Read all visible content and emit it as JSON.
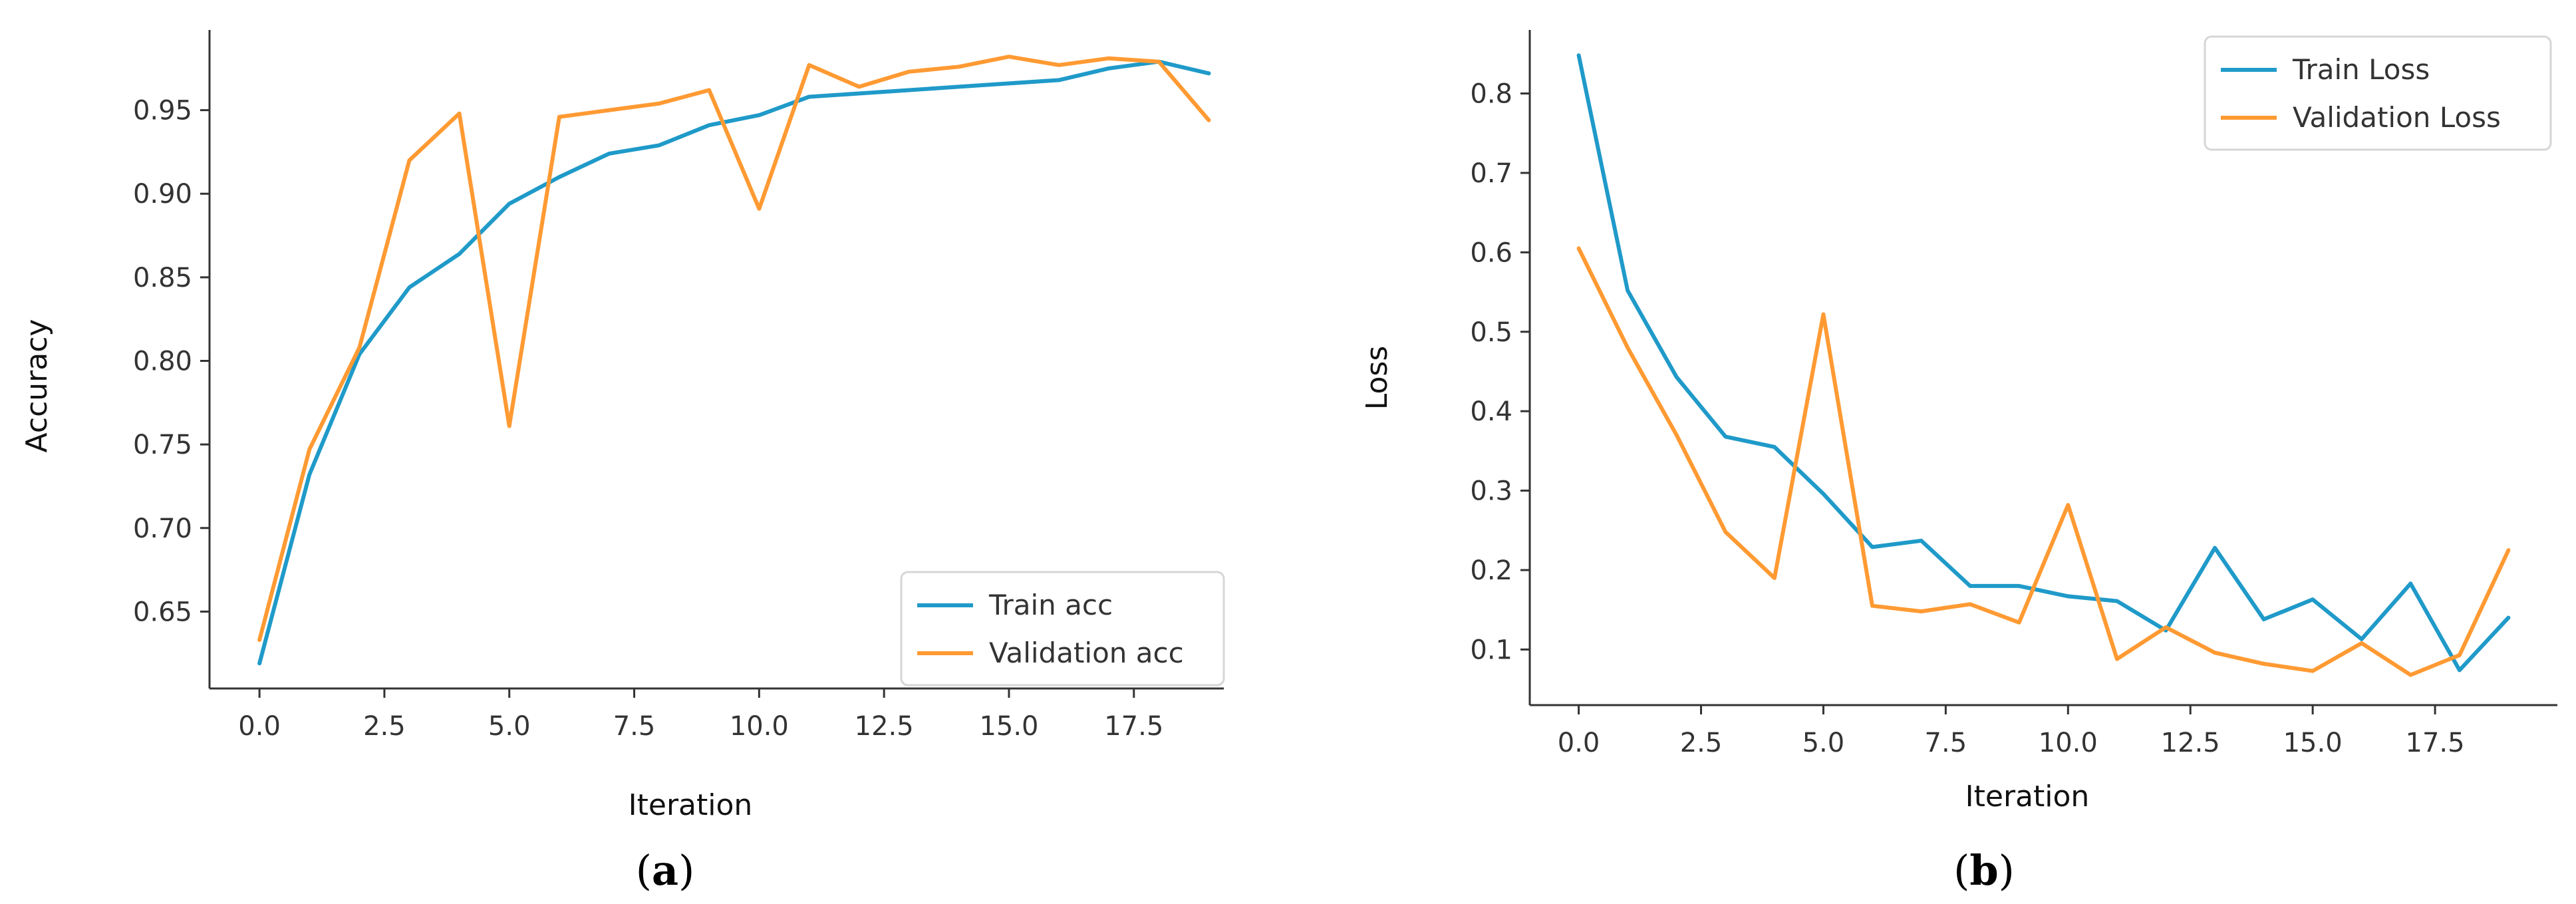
{
  "colors": {
    "train": "#1f9ac9",
    "validation": "#ff9a33",
    "axis": "#333333"
  },
  "chart_data": [
    {
      "type": "line",
      "title": "",
      "xlabel": "Iteration",
      "ylabel": "Accuracy",
      "caption_letter": "a",
      "xlim": [
        -1,
        19.3
      ],
      "ylim": [
        0.604,
        0.998
      ],
      "xticks": [
        0,
        2.5,
        5,
        7.5,
        10,
        12.5,
        15,
        17.5
      ],
      "xtick_labels": [
        "0.0",
        "2.5",
        "5.0",
        "7.5",
        "10.0",
        "12.5",
        "15.0",
        "17.5"
      ],
      "yticks": [
        0.65,
        0.7,
        0.75,
        0.8,
        0.85,
        0.9,
        0.95
      ],
      "ytick_labels": [
        "0.65",
        "0.70",
        "0.75",
        "0.80",
        "0.85",
        "0.90",
        "0.95"
      ],
      "x": [
        0,
        1,
        2,
        3,
        4,
        5,
        6,
        7,
        8,
        9,
        10,
        11,
        12,
        13,
        14,
        15,
        16,
        17,
        18,
        19
      ],
      "series": [
        {
          "name": "Train acc",
          "color": "#1f9ac9",
          "values": [
            0.619,
            0.732,
            0.804,
            0.844,
            0.864,
            0.894,
            0.91,
            0.924,
            0.929,
            0.941,
            0.947,
            0.958,
            0.96,
            0.962,
            0.964,
            0.966,
            0.968,
            0.975,
            0.979,
            0.972
          ]
        },
        {
          "name": "Validation acc",
          "color": "#ff9a33",
          "values": [
            0.633,
            0.747,
            0.808,
            0.92,
            0.948,
            0.761,
            0.946,
            0.95,
            0.954,
            0.962,
            0.891,
            0.977,
            0.964,
            0.973,
            0.976,
            0.982,
            0.977,
            0.981,
            0.979,
            0.944
          ]
        }
      ],
      "legend_position": "lower-right"
    },
    {
      "type": "line",
      "title": "",
      "xlabel": "Iteration",
      "ylabel": "Loss",
      "caption_letter": "b",
      "xlim": [
        -1,
        20
      ],
      "ylim": [
        0.03,
        0.88
      ],
      "xticks": [
        0,
        2.5,
        5,
        7.5,
        10,
        12.5,
        15,
        17.5
      ],
      "xtick_labels": [
        "0.0",
        "2.5",
        "5.0",
        "7.5",
        "10.0",
        "12.5",
        "15.0",
        "17.5"
      ],
      "yticks": [
        0.1,
        0.2,
        0.3,
        0.4,
        0.5,
        0.6,
        0.7,
        0.8
      ],
      "ytick_labels": [
        "0.1",
        "0.2",
        "0.3",
        "0.4",
        "0.5",
        "0.6",
        "0.7",
        "0.8"
      ],
      "x": [
        0,
        1,
        2,
        3,
        4,
        5,
        6,
        7,
        8,
        9,
        10,
        11,
        12,
        13,
        14,
        15,
        16,
        17,
        18,
        19
      ],
      "series": [
        {
          "name": "Train Loss",
          "color": "#1f9ac9",
          "values": [
            0.848,
            0.552,
            0.443,
            0.368,
            0.355,
            0.296,
            0.229,
            0.237,
            0.18,
            0.18,
            0.167,
            0.161,
            0.124,
            0.228,
            0.138,
            0.163,
            0.113,
            0.183,
            0.074,
            0.14
          ]
        },
        {
          "name": "Validation Loss",
          "color": "#ff9a33",
          "values": [
            0.605,
            0.48,
            0.37,
            0.248,
            0.19,
            0.522,
            0.155,
            0.148,
            0.157,
            0.134,
            0.282,
            0.088,
            0.128,
            0.096,
            0.082,
            0.073,
            0.108,
            0.068,
            0.093,
            0.225
          ]
        }
      ],
      "legend_position": "upper-right"
    }
  ]
}
